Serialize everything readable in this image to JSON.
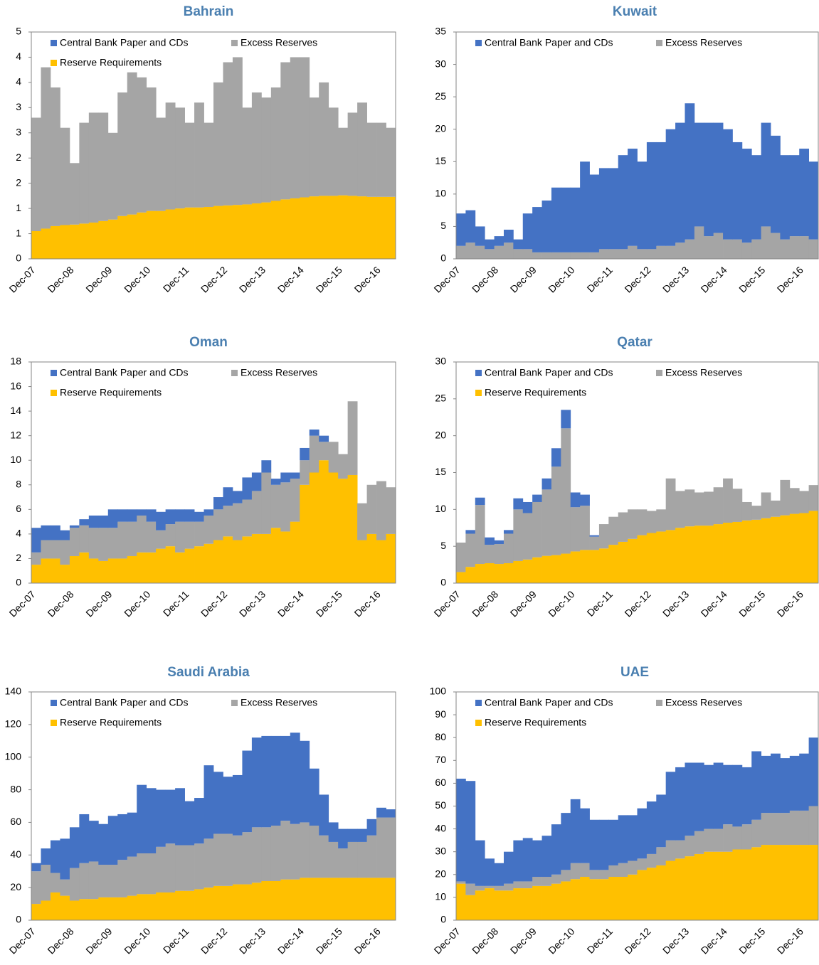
{
  "chart_data": [
    {
      "type": "bar",
      "stacked": true,
      "title": "Bahrain",
      "categories": [
        "Dec-07",
        null,
        null,
        null,
        "Dec-08",
        null,
        null,
        null,
        "Dec-09",
        null,
        null,
        null,
        "Dec-10",
        null,
        null,
        null,
        "Dec-11",
        null,
        null,
        null,
        "Dec-12",
        null,
        null,
        null,
        "Dec-13",
        null,
        null,
        null,
        "Dec-14",
        null,
        null,
        null,
        "Dec-15",
        null,
        null,
        null,
        "Dec-16",
        null
      ],
      "ylim": [
        0,
        4.5
      ],
      "yticks": [
        0,
        {
          "value": 0.5,
          "label": "1"
        },
        1,
        {
          "value": 1.5,
          "label": "2"
        },
        2,
        {
          "value": 2.5,
          "label": "3"
        },
        3,
        {
          "value": 3.5,
          "label": "4"
        },
        4,
        {
          "value": 4.5,
          "label": "5"
        }
      ],
      "series": [
        {
          "name": "Central Bank Paper and CDs",
          "color": "#4472c4",
          "values": [
            0,
            0,
            0,
            0,
            0,
            0,
            0,
            0,
            0,
            0,
            0,
            0,
            0,
            0,
            0,
            0,
            0,
            0,
            0,
            0,
            0,
            0,
            0,
            0,
            0,
            0,
            0,
            0,
            0,
            0,
            0,
            0,
            0,
            0,
            0,
            0,
            0,
            0
          ]
        },
        {
          "name": "Excess Reserves",
          "color": "#a5a5a5",
          "values": [
            2.25,
            3.2,
            2.75,
            1.93,
            1.22,
            2,
            2.18,
            2.15,
            1.72,
            2.45,
            2.82,
            2.68,
            2.45,
            1.85,
            2.12,
            2,
            1.68,
            2.08,
            1.67,
            2.45,
            2.84,
            2.93,
            1.92,
            2.2,
            2.08,
            2.25,
            2.72,
            2.8,
            2.78,
            1.96,
            2.25,
            1.75,
            1.34,
            1.65,
            1.86,
            1.47,
            1.47,
            1.37
          ]
        },
        {
          "name": "Reserve Requirements",
          "color": "#ffc000",
          "values": [
            0.55,
            0.6,
            0.65,
            0.67,
            0.68,
            0.7,
            0.72,
            0.75,
            0.78,
            0.85,
            0.88,
            0.92,
            0.95,
            0.95,
            0.98,
            1,
            1.02,
            1.02,
            1.03,
            1.05,
            1.06,
            1.07,
            1.08,
            1.1,
            1.12,
            1.15,
            1.18,
            1.2,
            1.22,
            1.24,
            1.25,
            1.25,
            1.26,
            1.25,
            1.24,
            1.23,
            1.23,
            1.23
          ]
        }
      ]
    },
    {
      "type": "bar",
      "stacked": true,
      "title": "Kuwait",
      "categories": [
        "Dec-07",
        null,
        null,
        null,
        "Dec-08",
        null,
        null,
        null,
        "Dec-09",
        null,
        null,
        null,
        "Dec-10",
        null,
        null,
        null,
        "Dec-11",
        null,
        null,
        null,
        "Dec-12",
        null,
        null,
        null,
        "Dec-13",
        null,
        null,
        null,
        "Dec-14",
        null,
        null,
        null,
        "Dec-15",
        null,
        null,
        null,
        "Dec-16",
        null
      ],
      "ylim": [
        0,
        35
      ],
      "yticks": [
        0,
        5,
        10,
        15,
        20,
        25,
        30,
        35
      ],
      "series": [
        {
          "name": "Central Bank Paper and CDs",
          "color": "#4472c4",
          "values": [
            5,
            5,
            3,
            1.5,
            1.5,
            2,
            1.5,
            5.5,
            7,
            8,
            10,
            10,
            10,
            14,
            12,
            12.5,
            12.5,
            14.5,
            15,
            13.5,
            16.5,
            16,
            18,
            18.5,
            21,
            16,
            17.5,
            17,
            17,
            15,
            14.5,
            13,
            16,
            15,
            13,
            12.5,
            13.5,
            12
          ]
        },
        {
          "name": "Excess Reserves",
          "color": "#a5a5a5",
          "values": [
            2,
            2.5,
            2,
            1.5,
            2,
            2.5,
            1.5,
            1.5,
            1,
            1,
            1,
            1,
            1,
            1,
            1,
            1.5,
            1.5,
            1.5,
            2,
            1.5,
            1.5,
            2,
            2,
            2.5,
            3,
            5,
            3.5,
            4,
            3,
            3,
            2.5,
            3,
            5,
            4,
            3,
            3.5,
            3.5,
            3
          ]
        }
      ]
    },
    {
      "type": "bar",
      "stacked": true,
      "title": "Oman",
      "categories": [
        "Dec-07",
        null,
        null,
        null,
        "Dec-08",
        null,
        null,
        null,
        "Dec-09",
        null,
        null,
        null,
        "Dec-10",
        null,
        null,
        null,
        "Dec-11",
        null,
        null,
        null,
        "Dec-12",
        null,
        null,
        null,
        "Dec-13",
        null,
        null,
        null,
        "Dec-14",
        null,
        null,
        null,
        "Dec-15",
        null,
        null,
        null,
        "Dec-16",
        null
      ],
      "ylim": [
        0,
        18
      ],
      "yticks": [
        0,
        2,
        4,
        6,
        8,
        10,
        12,
        14,
        16,
        18
      ],
      "series": [
        {
          "name": "Central Bank Paper and CDs",
          "color": "#4472c4",
          "values": [
            2,
            1.2,
            1.2,
            0.8,
            0.2,
            0.5,
            1,
            1,
            1.5,
            1,
            1,
            0.5,
            1,
            1.5,
            1.2,
            1,
            1,
            0.8,
            0.5,
            1,
            1.5,
            1,
            1.8,
            1.5,
            1,
            0.5,
            0.8,
            0.5,
            1,
            0.5,
            0.5,
            0,
            0,
            0,
            0,
            0,
            0,
            0
          ]
        },
        {
          "name": "Excess Reserves",
          "color": "#a5a5a5",
          "values": [
            1,
            1.5,
            1.5,
            2,
            2.3,
            2.2,
            2.5,
            2.7,
            2.5,
            3,
            2.8,
            3,
            2.5,
            1.5,
            1.8,
            2.5,
            2.2,
            2,
            2.3,
            2.5,
            2.5,
            3,
            3,
            3.5,
            5,
            3.5,
            4,
            3.5,
            2,
            3,
            1.5,
            2.5,
            2,
            6,
            3,
            4,
            4.8,
            3.8
          ]
        },
        {
          "name": "Reserve Requirements",
          "color": "#ffc000",
          "values": [
            1.5,
            2,
            2,
            1.5,
            2.2,
            2.5,
            2,
            1.8,
            2,
            2,
            2.2,
            2.5,
            2.5,
            2.8,
            3,
            2.5,
            2.8,
            3,
            3.2,
            3.5,
            3.8,
            3.5,
            3.8,
            4,
            4,
            4.5,
            4.2,
            5,
            8,
            9,
            10,
            9,
            8.5,
            8.8,
            3.5,
            4,
            3.5,
            4
          ]
        }
      ]
    },
    {
      "type": "bar",
      "stacked": true,
      "title": "Qatar",
      "categories": [
        "Dec-07",
        null,
        null,
        null,
        "Dec-08",
        null,
        null,
        null,
        "Dec-09",
        null,
        null,
        null,
        "Dec-10",
        null,
        null,
        null,
        "Dec-11",
        null,
        null,
        null,
        "Dec-12",
        null,
        null,
        null,
        "Dec-13",
        null,
        null,
        null,
        "Dec-14",
        null,
        null,
        null,
        "Dec-15",
        null,
        null,
        null,
        "Dec-16",
        null
      ],
      "ylim": [
        0,
        30
      ],
      "yticks": [
        0,
        5,
        10,
        15,
        20,
        25,
        30
      ],
      "series": [
        {
          "name": "Central Bank Paper and CDs",
          "color": "#4472c4",
          "values": [
            0,
            0.5,
            1,
            1,
            0.5,
            0.5,
            1.5,
            1.5,
            1,
            1.5,
            2.5,
            2.5,
            2,
            1.5,
            0.2,
            0,
            0,
            0,
            0,
            0,
            0,
            0,
            0,
            0,
            0,
            0,
            0,
            0,
            0,
            0,
            0,
            0,
            0,
            0,
            0,
            0,
            0,
            0
          ]
        },
        {
          "name": "Excess Reserves",
          "color": "#a5a5a5",
          "values": [
            4,
            4.5,
            8,
            2.5,
            2.7,
            4,
            7,
            6.3,
            7.5,
            9,
            12,
            17,
            6,
            6,
            1.8,
            3.3,
            3.8,
            4,
            4,
            3.5,
            3,
            3,
            7,
            5,
            5,
            4.5,
            4.6,
            5,
            6,
            4.5,
            2.5,
            1.9,
            3.5,
            2.2,
            4.8,
            3.5,
            3,
            3.5
          ]
        },
        {
          "name": "Reserve Requirements",
          "color": "#ffc000",
          "values": [
            1.5,
            2.2,
            2.6,
            2.7,
            2.6,
            2.7,
            3,
            3.2,
            3.5,
            3.7,
            3.8,
            4,
            4.3,
            4.5,
            4.5,
            4.7,
            5.2,
            5.6,
            6,
            6.5,
            6.8,
            7,
            7.2,
            7.5,
            7.7,
            7.8,
            7.8,
            8,
            8.2,
            8.3,
            8.5,
            8.6,
            8.8,
            9,
            9.2,
            9.4,
            9.5,
            9.8
          ]
        }
      ]
    },
    {
      "type": "bar",
      "stacked": true,
      "title": "Saudi Arabia",
      "categories": [
        "Dec-07",
        null,
        null,
        null,
        "Dec-08",
        null,
        null,
        null,
        "Dec-09",
        null,
        null,
        null,
        "Dec-10",
        null,
        null,
        null,
        "Dec-11",
        null,
        null,
        null,
        "Dec-12",
        null,
        null,
        null,
        "Dec-13",
        null,
        null,
        null,
        "Dec-14",
        null,
        null,
        null,
        "Dec-15",
        null,
        null,
        null,
        "Dec-16",
        null
      ],
      "ylim": [
        0,
        140
      ],
      "yticks": [
        0,
        20,
        40,
        60,
        80,
        100,
        120,
        140
      ],
      "series": [
        {
          "name": "Central Bank Paper and CDs",
          "color": "#4472c4",
          "values": [
            5,
            10,
            20,
            25,
            25,
            30,
            25,
            25,
            30,
            28,
            27,
            42,
            40,
            35,
            33,
            35,
            27,
            28,
            45,
            38,
            35,
            37,
            50,
            55,
            56,
            55,
            52,
            56,
            50,
            35,
            25,
            12,
            12,
            8,
            8,
            10,
            6,
            5
          ]
        },
        {
          "name": "Excess Reserves",
          "color": "#a5a5a5",
          "values": [
            20,
            22,
            12,
            10,
            20,
            22,
            23,
            20,
            20,
            23,
            24,
            25,
            25,
            28,
            30,
            28,
            28,
            28,
            30,
            32,
            32,
            30,
            32,
            34,
            33,
            34,
            36,
            34,
            34,
            32,
            26,
            22,
            18,
            22,
            22,
            26,
            37,
            37
          ]
        },
        {
          "name": "Reserve Requirements",
          "color": "#ffc000",
          "values": [
            10,
            12,
            17,
            15,
            12,
            13,
            13,
            14,
            14,
            14,
            15,
            16,
            16,
            17,
            17,
            18,
            18,
            19,
            20,
            21,
            21,
            22,
            22,
            23,
            24,
            24,
            25,
            25,
            26,
            26,
            26,
            26,
            26,
            26,
            26,
            26,
            26,
            26
          ]
        }
      ]
    },
    {
      "type": "bar",
      "stacked": true,
      "title": "UAE",
      "categories": [
        "Dec-07",
        null,
        null,
        null,
        "Dec-08",
        null,
        null,
        null,
        "Dec-09",
        null,
        null,
        null,
        "Dec-10",
        null,
        null,
        null,
        "Dec-11",
        null,
        null,
        null,
        "Dec-12",
        null,
        null,
        null,
        "Dec-13",
        null,
        null,
        null,
        "Dec-14",
        null,
        null,
        null,
        "Dec-15",
        null,
        null,
        null,
        "Dec-16",
        null
      ],
      "ylim": [
        0,
        100
      ],
      "yticks": [
        0,
        10,
        20,
        30,
        40,
        50,
        60,
        70,
        80,
        90,
        100
      ],
      "series": [
        {
          "name": "Central Bank Paper and CDs",
          "color": "#4472c4",
          "values": [
            45,
            45,
            20,
            12,
            10,
            14,
            18,
            19,
            16,
            18,
            22,
            25,
            28,
            24,
            22,
            22,
            20,
            21,
            20,
            22,
            23,
            23,
            30,
            32,
            32,
            30,
            28,
            29,
            26,
            27,
            25,
            30,
            25,
            26,
            24,
            24,
            25,
            30
          ]
        },
        {
          "name": "Excess Reserves",
          "color": "#a5a5a5",
          "values": [
            1,
            5,
            2,
            1,
            2,
            3,
            3,
            3,
            4,
            4,
            4,
            5,
            7,
            6,
            4,
            4,
            5,
            6,
            6,
            5,
            6,
            8,
            9,
            8,
            9,
            10,
            10,
            10,
            12,
            10,
            11,
            12,
            14,
            14,
            14,
            15,
            15,
            17
          ]
        },
        {
          "name": "Reserve Requirements",
          "color": "#ffc000",
          "values": [
            16,
            11,
            13,
            14,
            13,
            13,
            14,
            14,
            15,
            15,
            16,
            17,
            18,
            19,
            18,
            18,
            19,
            19,
            20,
            22,
            23,
            24,
            26,
            27,
            28,
            29,
            30,
            30,
            30,
            31,
            31,
            32,
            33,
            33,
            33,
            33,
            33,
            33
          ]
        }
      ]
    }
  ]
}
